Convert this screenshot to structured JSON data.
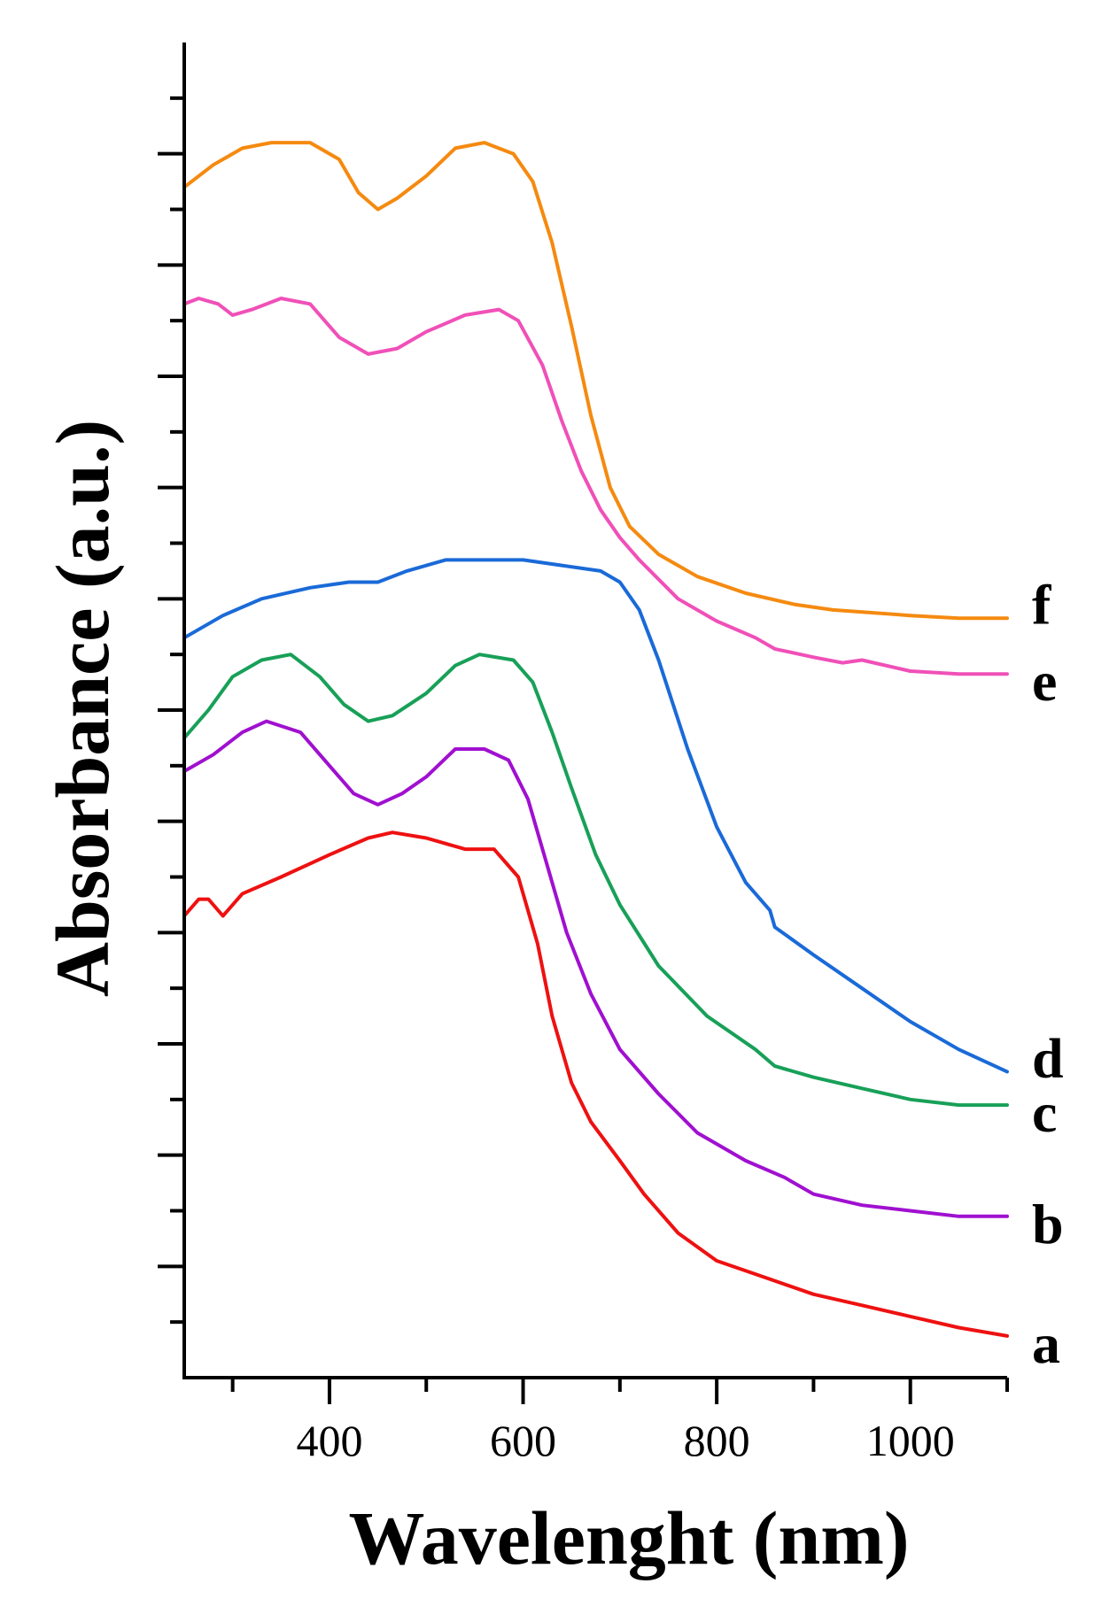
{
  "chart_data": {
    "type": "line",
    "title": "",
    "xlabel": "Wavelenght (nm)",
    "ylabel": "Absorbance (a.u.)",
    "xlim": [
      250,
      1100
    ],
    "ylim": [
      0,
      24
    ],
    "x_ticks": [
      400,
      600,
      800,
      1000
    ],
    "y_tick_labels": "none",
    "grid": false,
    "legend": "none",
    "series": [
      {
        "name": "a",
        "color": "#ee1111",
        "points": [
          [
            250,
            8.3
          ],
          [
            265,
            8.6
          ],
          [
            275,
            8.6
          ],
          [
            290,
            8.3
          ],
          [
            310,
            8.7
          ],
          [
            350,
            9.0
          ],
          [
            400,
            9.4
          ],
          [
            440,
            9.7
          ],
          [
            465,
            9.8
          ],
          [
            500,
            9.7
          ],
          [
            540,
            9.5
          ],
          [
            570,
            9.5
          ],
          [
            595,
            9.0
          ],
          [
            615,
            7.8
          ],
          [
            630,
            6.5
          ],
          [
            650,
            5.3
          ],
          [
            670,
            4.6
          ],
          [
            700,
            3.9
          ],
          [
            725,
            3.3
          ],
          [
            760,
            2.6
          ],
          [
            800,
            2.1
          ],
          [
            850,
            1.8
          ],
          [
            900,
            1.5
          ],
          [
            950,
            1.3
          ],
          [
            1000,
            1.1
          ],
          [
            1050,
            0.9
          ],
          [
            1100,
            0.75
          ]
        ]
      },
      {
        "name": "b",
        "color": "#a010d0",
        "points": [
          [
            250,
            10.9
          ],
          [
            280,
            11.2
          ],
          [
            310,
            11.6
          ],
          [
            335,
            11.8
          ],
          [
            370,
            11.6
          ],
          [
            400,
            11.0
          ],
          [
            425,
            10.5
          ],
          [
            450,
            10.3
          ],
          [
            475,
            10.5
          ],
          [
            500,
            10.8
          ],
          [
            530,
            11.3
          ],
          [
            560,
            11.3
          ],
          [
            585,
            11.1
          ],
          [
            605,
            10.4
          ],
          [
            625,
            9.2
          ],
          [
            645,
            8.0
          ],
          [
            670,
            6.9
          ],
          [
            700,
            5.9
          ],
          [
            740,
            5.1
          ],
          [
            780,
            4.4
          ],
          [
            830,
            3.9
          ],
          [
            870,
            3.6
          ],
          [
            900,
            3.3
          ],
          [
            950,
            3.1
          ],
          [
            1000,
            3.0
          ],
          [
            1050,
            2.9
          ],
          [
            1100,
            2.9
          ]
        ]
      },
      {
        "name": "c",
        "color": "#18a058",
        "points": [
          [
            250,
            11.5
          ],
          [
            275,
            12.0
          ],
          [
            300,
            12.6
          ],
          [
            330,
            12.9
          ],
          [
            360,
            13.0
          ],
          [
            390,
            12.6
          ],
          [
            415,
            12.1
          ],
          [
            440,
            11.8
          ],
          [
            465,
            11.9
          ],
          [
            500,
            12.3
          ],
          [
            530,
            12.8
          ],
          [
            555,
            13.0
          ],
          [
            590,
            12.9
          ],
          [
            610,
            12.5
          ],
          [
            630,
            11.6
          ],
          [
            650,
            10.6
          ],
          [
            675,
            9.4
          ],
          [
            700,
            8.5
          ],
          [
            740,
            7.4
          ],
          [
            790,
            6.5
          ],
          [
            840,
            5.9
          ],
          [
            860,
            5.6
          ],
          [
            900,
            5.4
          ],
          [
            950,
            5.2
          ],
          [
            1000,
            5.0
          ],
          [
            1050,
            4.9
          ],
          [
            1100,
            4.9
          ]
        ]
      },
      {
        "name": "d",
        "color": "#1a6ad8",
        "points": [
          [
            250,
            13.3
          ],
          [
            290,
            13.7
          ],
          [
            330,
            14.0
          ],
          [
            380,
            14.2
          ],
          [
            420,
            14.3
          ],
          [
            450,
            14.3
          ],
          [
            480,
            14.5
          ],
          [
            520,
            14.7
          ],
          [
            560,
            14.7
          ],
          [
            600,
            14.7
          ],
          [
            640,
            14.6
          ],
          [
            680,
            14.5
          ],
          [
            700,
            14.3
          ],
          [
            720,
            13.8
          ],
          [
            740,
            12.9
          ],
          [
            770,
            11.3
          ],
          [
            800,
            9.9
          ],
          [
            830,
            8.9
          ],
          [
            855,
            8.4
          ],
          [
            860,
            8.1
          ],
          [
            900,
            7.6
          ],
          [
            950,
            7.0
          ],
          [
            1000,
            6.4
          ],
          [
            1050,
            5.9
          ],
          [
            1100,
            5.5
          ]
        ]
      },
      {
        "name": "e",
        "color": "#f050b8",
        "points": [
          [
            250,
            19.3
          ],
          [
            265,
            19.4
          ],
          [
            285,
            19.3
          ],
          [
            300,
            19.1
          ],
          [
            320,
            19.2
          ],
          [
            350,
            19.4
          ],
          [
            380,
            19.3
          ],
          [
            410,
            18.7
          ],
          [
            440,
            18.4
          ],
          [
            470,
            18.5
          ],
          [
            500,
            18.8
          ],
          [
            540,
            19.1
          ],
          [
            575,
            19.2
          ],
          [
            595,
            19.0
          ],
          [
            620,
            18.2
          ],
          [
            640,
            17.2
          ],
          [
            660,
            16.3
          ],
          [
            680,
            15.6
          ],
          [
            700,
            15.1
          ],
          [
            720,
            14.7
          ],
          [
            760,
            14.0
          ],
          [
            800,
            13.6
          ],
          [
            840,
            13.3
          ],
          [
            860,
            13.1
          ],
          [
            900,
            12.95
          ],
          [
            930,
            12.85
          ],
          [
            950,
            12.9
          ],
          [
            1000,
            12.7
          ],
          [
            1050,
            12.65
          ],
          [
            1100,
            12.65
          ]
        ]
      },
      {
        "name": "f",
        "color": "#f58a10",
        "points": [
          [
            250,
            21.4
          ],
          [
            280,
            21.8
          ],
          [
            310,
            22.1
          ],
          [
            340,
            22.2
          ],
          [
            380,
            22.2
          ],
          [
            410,
            21.9
          ],
          [
            430,
            21.3
          ],
          [
            450,
            21.0
          ],
          [
            470,
            21.2
          ],
          [
            500,
            21.6
          ],
          [
            530,
            22.1
          ],
          [
            560,
            22.2
          ],
          [
            590,
            22.0
          ],
          [
            610,
            21.5
          ],
          [
            630,
            20.4
          ],
          [
            650,
            18.9
          ],
          [
            670,
            17.3
          ],
          [
            690,
            16.0
          ],
          [
            710,
            15.3
          ],
          [
            740,
            14.8
          ],
          [
            780,
            14.4
          ],
          [
            830,
            14.1
          ],
          [
            880,
            13.9
          ],
          [
            920,
            13.8
          ],
          [
            960,
            13.75
          ],
          [
            1000,
            13.7
          ],
          [
            1050,
            13.65
          ],
          [
            1100,
            13.65
          ]
        ]
      }
    ]
  }
}
